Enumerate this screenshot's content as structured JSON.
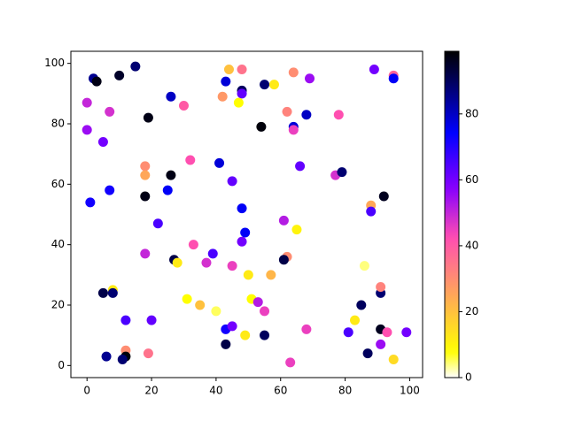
{
  "chart_data": {
    "type": "scatter",
    "colormap": "gnuplot2_r",
    "xlim": [
      -5,
      104
    ],
    "ylim": [
      -4,
      104
    ],
    "xticks": [
      0,
      20,
      40,
      60,
      80,
      100
    ],
    "yticks": [
      0,
      20,
      40,
      60,
      80,
      100
    ],
    "colorbar": {
      "clim": [
        0,
        99
      ],
      "ticks": [
        0,
        20,
        40,
        60,
        80
      ]
    },
    "series": [
      {
        "x": [
          2,
          3,
          10,
          15,
          0,
          0,
          5,
          7,
          19,
          26,
          30,
          44,
          48,
          48,
          48,
          42,
          43,
          47,
          55,
          58,
          64,
          69,
          62,
          68,
          54,
          64,
          64,
          78,
          89,
          95,
          95,
          18,
          18,
          32,
          41,
          26,
          7,
          25,
          18,
          45,
          66,
          77,
          79,
          1,
          48,
          22,
          18,
          33,
          49,
          61,
          65,
          48,
          37,
          39,
          27,
          28,
          45,
          62,
          61,
          57,
          50,
          88,
          88,
          92,
          86,
          5,
          8,
          8,
          12,
          20,
          31,
          35,
          40,
          51,
          53,
          55,
          49,
          43,
          45,
          55,
          43,
          68,
          6,
          12,
          12,
          11,
          19,
          63,
          81,
          83,
          85,
          91,
          91,
          91,
          93,
          91,
          87,
          95,
          99
        ],
        "y": [
          95,
          94,
          96,
          99,
          87,
          78,
          74,
          84,
          82,
          89,
          86,
          98,
          98,
          91,
          90,
          89,
          94,
          87,
          93,
          93,
          97,
          95,
          84,
          83,
          79,
          79,
          78,
          83,
          98,
          96,
          95,
          66,
          63,
          68,
          67,
          63,
          58,
          58,
          56,
          61,
          66,
          63,
          64,
          54,
          52,
          47,
          37,
          40,
          44,
          48,
          45,
          41,
          34,
          37,
          35,
          34,
          33,
          36,
          35,
          30,
          30,
          53,
          51,
          56,
          33,
          24,
          25,
          24,
          15,
          15,
          22,
          20,
          18,
          22,
          21,
          18,
          10,
          12,
          13,
          10,
          7,
          12,
          3,
          5,
          3,
          2,
          4,
          1,
          11,
          15,
          20,
          24,
          26,
          12,
          11,
          7,
          4,
          2,
          11
        ],
        "c": [
          85,
          97,
          95,
          88,
          50,
          55,
          60,
          48,
          97,
          80,
          40,
          20,
          35,
          90,
          62,
          28,
          78,
          8,
          88,
          12,
          30,
          55,
          32,
          80,
          98,
          78,
          45,
          42,
          60,
          38,
          75,
          30,
          25,
          42,
          78,
          97,
          72,
          75,
          97,
          62,
          62,
          48,
          88,
          72,
          75,
          65,
          50,
          42,
          75,
          52,
          10,
          60,
          48,
          65,
          92,
          12,
          45,
          30,
          92,
          22,
          12,
          25,
          65,
          96,
          4,
          92,
          12,
          88,
          65,
          62,
          8,
          20,
          5,
          8,
          52,
          45,
          12,
          72,
          60,
          90,
          92,
          45,
          85,
          30,
          98,
          88,
          35,
          45,
          65,
          12,
          90,
          88,
          32,
          96,
          42,
          55,
          90,
          15,
          60
        ]
      }
    ]
  }
}
